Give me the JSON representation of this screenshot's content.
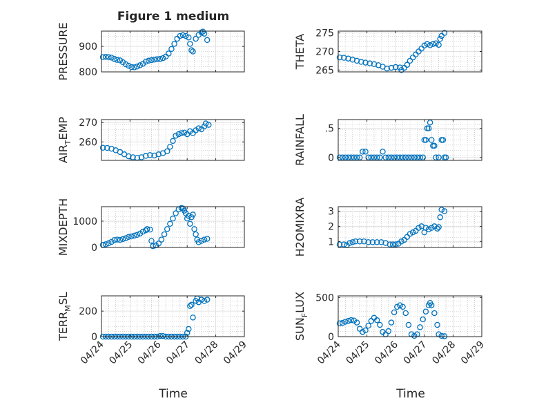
{
  "figure": {
    "title": "Figure 1 medium"
  },
  "colors": {
    "marker": "#0072BD",
    "axis": "#262626",
    "grid": "#b3b3b3"
  },
  "x_ticks": [
    "04/24",
    "04/25",
    "04/26",
    "04/27",
    "04/28",
    "04/29"
  ],
  "x_label": "Time",
  "chart_data": [
    {
      "type": "scatter",
      "id": "pressure",
      "ylabel": "PRESSURE",
      "xlim": [
        0,
        5
      ],
      "ylim": [
        800,
        960
      ],
      "yticks": [
        800,
        900
      ],
      "xticks": [
        "04/24",
        "04/25",
        "04/26",
        "04/27",
        "04/28",
        "04/29"
      ],
      "grid": true,
      "points": [
        [
          0.05,
          858
        ],
        [
          0.15,
          859
        ],
        [
          0.25,
          858
        ],
        [
          0.35,
          856
        ],
        [
          0.45,
          851
        ],
        [
          0.55,
          847
        ],
        [
          0.65,
          845
        ],
        [
          0.75,
          838
        ],
        [
          0.85,
          830
        ],
        [
          0.95,
          824
        ],
        [
          1.05,
          819
        ],
        [
          1.15,
          818
        ],
        [
          1.25,
          821
        ],
        [
          1.35,
          826
        ],
        [
          1.45,
          832
        ],
        [
          1.55,
          840
        ],
        [
          1.65,
          844
        ],
        [
          1.75,
          846
        ],
        [
          1.85,
          848
        ],
        [
          1.95,
          850
        ],
        [
          2.05,
          851
        ],
        [
          2.15,
          854
        ],
        [
          2.25,
          860
        ],
        [
          2.35,
          872
        ],
        [
          2.45,
          890
        ],
        [
          2.55,
          910
        ],
        [
          2.65,
          930
        ],
        [
          2.75,
          941
        ],
        [
          2.85,
          944
        ],
        [
          2.95,
          941
        ],
        [
          3.05,
          935
        ],
        [
          3.1,
          910
        ],
        [
          3.15,
          885
        ],
        [
          3.2,
          880
        ],
        [
          3.3,
          930
        ],
        [
          3.4,
          945
        ],
        [
          3.5,
          955
        ],
        [
          3.55,
          958
        ],
        [
          3.6,
          950
        ],
        [
          3.7,
          925
        ]
      ]
    },
    {
      "type": "scatter",
      "id": "theta",
      "ylabel": "THETA",
      "xlim": [
        0,
        5
      ],
      "ylim": [
        264.5,
        275.5
      ],
      "yticks": [
        265,
        270,
        275
      ],
      "xticks": [
        "04/24",
        "04/25",
        "04/26",
        "04/27",
        "04/28",
        "04/29"
      ],
      "grid": true,
      "points": [
        [
          0.05,
          268.4
        ],
        [
          0.2,
          268.3
        ],
        [
          0.35,
          268.1
        ],
        [
          0.5,
          267.8
        ],
        [
          0.65,
          267.5
        ],
        [
          0.8,
          267.2
        ],
        [
          0.95,
          267.0
        ],
        [
          1.1,
          266.8
        ],
        [
          1.25,
          266.6
        ],
        [
          1.4,
          266.3
        ],
        [
          1.55,
          265.9
        ],
        [
          1.7,
          265.4
        ],
        [
          1.85,
          265.6
        ],
        [
          2.0,
          265.8
        ],
        [
          2.15,
          265.7
        ],
        [
          2.2,
          265.0
        ],
        [
          2.3,
          265.6
        ],
        [
          2.4,
          266.4
        ],
        [
          2.5,
          267.5
        ],
        [
          2.6,
          268.4
        ],
        [
          2.7,
          269.2
        ],
        [
          2.8,
          270.0
        ],
        [
          2.9,
          270.8
        ],
        [
          3.0,
          271.6
        ],
        [
          3.1,
          272.0
        ],
        [
          3.2,
          271.7
        ],
        [
          3.3,
          272.0
        ],
        [
          3.4,
          272.2
        ],
        [
          3.5,
          271.8
        ],
        [
          3.55,
          273.4
        ],
        [
          3.6,
          274.2
        ],
        [
          3.7,
          275.0
        ]
      ]
    },
    {
      "type": "scatter",
      "id": "air_temp",
      "ylabel": "AIR_TEMP",
      "xlim": [
        0,
        5
      ],
      "ylim": [
        250.5,
        271.5
      ],
      "yticks": [
        260,
        270
      ],
      "xticks": [
        "04/24",
        "04/25",
        "04/26",
        "04/27",
        "04/28",
        "04/29"
      ],
      "grid": true,
      "points": [
        [
          0.05,
          257.0
        ],
        [
          0.2,
          256.9
        ],
        [
          0.35,
          256.5
        ],
        [
          0.5,
          255.7
        ],
        [
          0.65,
          254.8
        ],
        [
          0.8,
          253.6
        ],
        [
          0.95,
          252.6
        ],
        [
          1.1,
          252.1
        ],
        [
          1.25,
          251.8
        ],
        [
          1.4,
          252.1
        ],
        [
          1.55,
          252.8
        ],
        [
          1.7,
          253.2
        ],
        [
          1.85,
          253.0
        ],
        [
          2.0,
          253.6
        ],
        [
          2.15,
          254.2
        ],
        [
          2.3,
          255.2
        ],
        [
          2.4,
          257.5
        ],
        [
          2.5,
          260.5
        ],
        [
          2.6,
          263.2
        ],
        [
          2.7,
          264.0
        ],
        [
          2.8,
          264.5
        ],
        [
          2.9,
          264.8
        ],
        [
          3.0,
          264.0
        ],
        [
          3.1,
          265.5
        ],
        [
          3.2,
          264.5
        ],
        [
          3.3,
          266.0
        ],
        [
          3.4,
          267.0
        ],
        [
          3.5,
          266.5
        ],
        [
          3.6,
          268.0
        ],
        [
          3.65,
          269.5
        ],
        [
          3.75,
          268.8
        ]
      ]
    },
    {
      "type": "scatter",
      "id": "rainfall",
      "ylabel": "RAINFALL",
      "xlim": [
        0,
        5
      ],
      "ylim": [
        -0.05,
        0.65
      ],
      "yticks": [
        0,
        0.5
      ],
      "xticks": [
        "04/24",
        "04/25",
        "04/26",
        "04/27",
        "04/28",
        "04/29"
      ],
      "grid": true,
      "points": [
        [
          0.05,
          0
        ],
        [
          0.15,
          0
        ],
        [
          0.25,
          0
        ],
        [
          0.35,
          0
        ],
        [
          0.45,
          0
        ],
        [
          0.55,
          0
        ],
        [
          0.65,
          0
        ],
        [
          0.75,
          0
        ],
        [
          0.85,
          0.1
        ],
        [
          0.95,
          0.1
        ],
        [
          1.05,
          0
        ],
        [
          1.15,
          0
        ],
        [
          1.25,
          0
        ],
        [
          1.35,
          0
        ],
        [
          1.45,
          0
        ],
        [
          1.55,
          0.1
        ],
        [
          1.65,
          0
        ],
        [
          1.75,
          0
        ],
        [
          1.85,
          0
        ],
        [
          1.95,
          0
        ],
        [
          2.05,
          0
        ],
        [
          2.15,
          0
        ],
        [
          2.25,
          0
        ],
        [
          2.35,
          0
        ],
        [
          2.45,
          0
        ],
        [
          2.55,
          0
        ],
        [
          2.65,
          0
        ],
        [
          2.75,
          0
        ],
        [
          2.85,
          0
        ],
        [
          2.95,
          0
        ],
        [
          3.0,
          0.3
        ],
        [
          3.05,
          0.3
        ],
        [
          3.1,
          0.5
        ],
        [
          3.15,
          0.5
        ],
        [
          3.2,
          0.6
        ],
        [
          3.25,
          0.3
        ],
        [
          3.3,
          0.2
        ],
        [
          3.35,
          0.2
        ],
        [
          3.4,
          0
        ],
        [
          3.5,
          0
        ],
        [
          3.6,
          0.3
        ],
        [
          3.65,
          0.3
        ],
        [
          3.7,
          0
        ],
        [
          3.75,
          0
        ]
      ]
    },
    {
      "type": "scatter",
      "id": "mixdepth",
      "ylabel": "MIXDEPTH",
      "xlim": [
        0,
        5
      ],
      "ylim": [
        0,
        1550
      ],
      "yticks": [
        0,
        1000
      ],
      "xticks": [
        "04/24",
        "04/25",
        "04/26",
        "04/27",
        "04/28",
        "04/29"
      ],
      "grid": true,
      "points": [
        [
          0.05,
          100
        ],
        [
          0.15,
          120
        ],
        [
          0.25,
          160
        ],
        [
          0.35,
          210
        ],
        [
          0.45,
          280
        ],
        [
          0.55,
          300
        ],
        [
          0.65,
          290
        ],
        [
          0.75,
          320
        ],
        [
          0.85,
          350
        ],
        [
          0.95,
          400
        ],
        [
          1.05,
          420
        ],
        [
          1.15,
          450
        ],
        [
          1.25,
          480
        ],
        [
          1.35,
          530
        ],
        [
          1.45,
          600
        ],
        [
          1.55,
          650
        ],
        [
          1.6,
          700
        ],
        [
          1.7,
          680
        ],
        [
          1.75,
          250
        ],
        [
          1.8,
          50
        ],
        [
          1.9,
          80
        ],
        [
          2.0,
          150
        ],
        [
          2.1,
          300
        ],
        [
          2.2,
          500
        ],
        [
          2.3,
          700
        ],
        [
          2.4,
          900
        ],
        [
          2.5,
          1100
        ],
        [
          2.6,
          1300
        ],
        [
          2.7,
          1450
        ],
        [
          2.8,
          1500
        ],
        [
          2.85,
          1480
        ],
        [
          2.9,
          1400
        ],
        [
          2.95,
          1300
        ],
        [
          3.0,
          1100
        ],
        [
          3.05,
          1200
        ],
        [
          3.1,
          900
        ],
        [
          3.15,
          1150
        ],
        [
          3.2,
          1250
        ],
        [
          3.25,
          700
        ],
        [
          3.3,
          500
        ],
        [
          3.35,
          300
        ],
        [
          3.4,
          200
        ],
        [
          3.5,
          250
        ],
        [
          3.6,
          300
        ],
        [
          3.7,
          330
        ]
      ]
    },
    {
      "type": "scatter",
      "id": "h2omixra",
      "ylabel": "H2OMIXRA",
      "xlim": [
        0,
        5
      ],
      "ylim": [
        0.6,
        3.3
      ],
      "yticks": [
        1,
        2,
        3
      ],
      "xticks": [
        "04/24",
        "04/25",
        "04/26",
        "04/27",
        "04/28",
        "04/29"
      ],
      "grid": true,
      "points": [
        [
          0.05,
          0.8
        ],
        [
          0.2,
          0.8
        ],
        [
          0.3,
          0.75
        ],
        [
          0.4,
          0.9
        ],
        [
          0.5,
          0.95
        ],
        [
          0.6,
          1.0
        ],
        [
          0.75,
          1.0
        ],
        [
          0.9,
          1.0
        ],
        [
          1.05,
          0.95
        ],
        [
          1.2,
          0.95
        ],
        [
          1.35,
          0.95
        ],
        [
          1.5,
          0.95
        ],
        [
          1.65,
          0.9
        ],
        [
          1.8,
          0.8
        ],
        [
          1.9,
          0.8
        ],
        [
          2.0,
          0.8
        ],
        [
          2.1,
          0.85
        ],
        [
          2.2,
          1.0
        ],
        [
          2.3,
          1.1
        ],
        [
          2.4,
          1.3
        ],
        [
          2.5,
          1.5
        ],
        [
          2.6,
          1.6
        ],
        [
          2.7,
          1.7
        ],
        [
          2.8,
          1.9
        ],
        [
          2.9,
          2.0
        ],
        [
          3.0,
          1.6
        ],
        [
          3.05,
          1.9
        ],
        [
          3.15,
          1.8
        ],
        [
          3.25,
          1.9
        ],
        [
          3.35,
          2.0
        ],
        [
          3.45,
          1.85
        ],
        [
          3.5,
          1.95
        ],
        [
          3.55,
          2.6
        ],
        [
          3.6,
          3.1
        ],
        [
          3.7,
          3.0
        ]
      ]
    },
    {
      "type": "scatter",
      "id": "terr_msl",
      "ylabel": "TERR_MSL",
      "xlim": [
        0,
        5
      ],
      "ylim": [
        0,
        320
      ],
      "yticks": [
        0,
        200
      ],
      "xticks": [
        "04/24",
        "04/25",
        "04/26",
        "04/27",
        "04/28",
        "04/29"
      ],
      "grid": true,
      "points": [
        [
          0.05,
          0
        ],
        [
          0.15,
          0
        ],
        [
          0.25,
          0
        ],
        [
          0.35,
          0
        ],
        [
          0.45,
          0
        ],
        [
          0.55,
          0
        ],
        [
          0.65,
          0
        ],
        [
          0.75,
          0
        ],
        [
          0.85,
          0
        ],
        [
          0.95,
          0
        ],
        [
          1.05,
          0
        ],
        [
          1.15,
          0
        ],
        [
          1.25,
          0
        ],
        [
          1.35,
          0
        ],
        [
          1.45,
          0
        ],
        [
          1.55,
          0
        ],
        [
          1.65,
          0
        ],
        [
          1.75,
          0
        ],
        [
          1.85,
          0
        ],
        [
          1.95,
          0
        ],
        [
          2.05,
          5
        ],
        [
          2.15,
          5
        ],
        [
          2.25,
          0
        ],
        [
          2.35,
          0
        ],
        [
          2.45,
          0
        ],
        [
          2.55,
          0
        ],
        [
          2.65,
          0
        ],
        [
          2.75,
          0
        ],
        [
          2.85,
          0
        ],
        [
          2.95,
          0
        ],
        [
          3.0,
          30
        ],
        [
          3.05,
          60
        ],
        [
          3.1,
          240
        ],
        [
          3.15,
          250
        ],
        [
          3.2,
          150
        ],
        [
          3.3,
          280
        ],
        [
          3.35,
          300
        ],
        [
          3.4,
          270
        ],
        [
          3.5,
          290
        ],
        [
          3.6,
          280
        ],
        [
          3.7,
          290
        ]
      ]
    },
    {
      "type": "scatter",
      "id": "sun_flux",
      "ylabel": "SUN_FLUX",
      "xlim": [
        0,
        5
      ],
      "ylim": [
        0,
        520
      ],
      "yticks": [
        0,
        500
      ],
      "xticks": [
        "04/24",
        "04/25",
        "04/26",
        "04/27",
        "04/28",
        "04/29"
      ],
      "grid": true,
      "points": [
        [
          0.05,
          170
        ],
        [
          0.15,
          175
        ],
        [
          0.25,
          190
        ],
        [
          0.35,
          200
        ],
        [
          0.45,
          210
        ],
        [
          0.55,
          205
        ],
        [
          0.65,
          180
        ],
        [
          0.75,
          100
        ],
        [
          0.85,
          60
        ],
        [
          0.95,
          80
        ],
        [
          1.05,
          140
        ],
        [
          1.15,
          200
        ],
        [
          1.25,
          240
        ],
        [
          1.35,
          210
        ],
        [
          1.45,
          150
        ],
        [
          1.55,
          60
        ],
        [
          1.65,
          30
        ],
        [
          1.75,
          70
        ],
        [
          1.85,
          180
        ],
        [
          1.95,
          310
        ],
        [
          2.05,
          380
        ],
        [
          2.15,
          400
        ],
        [
          2.25,
          380
        ],
        [
          2.35,
          300
        ],
        [
          2.45,
          150
        ],
        [
          2.55,
          30
        ],
        [
          2.65,
          10
        ],
        [
          2.75,
          30
        ],
        [
          2.85,
          120
        ],
        [
          2.95,
          220
        ],
        [
          3.05,
          320
        ],
        [
          3.15,
          400
        ],
        [
          3.2,
          430
        ],
        [
          3.25,
          400
        ],
        [
          3.35,
          300
        ],
        [
          3.45,
          150
        ],
        [
          3.5,
          30
        ],
        [
          3.6,
          10
        ],
        [
          3.7,
          5
        ]
      ]
    }
  ]
}
